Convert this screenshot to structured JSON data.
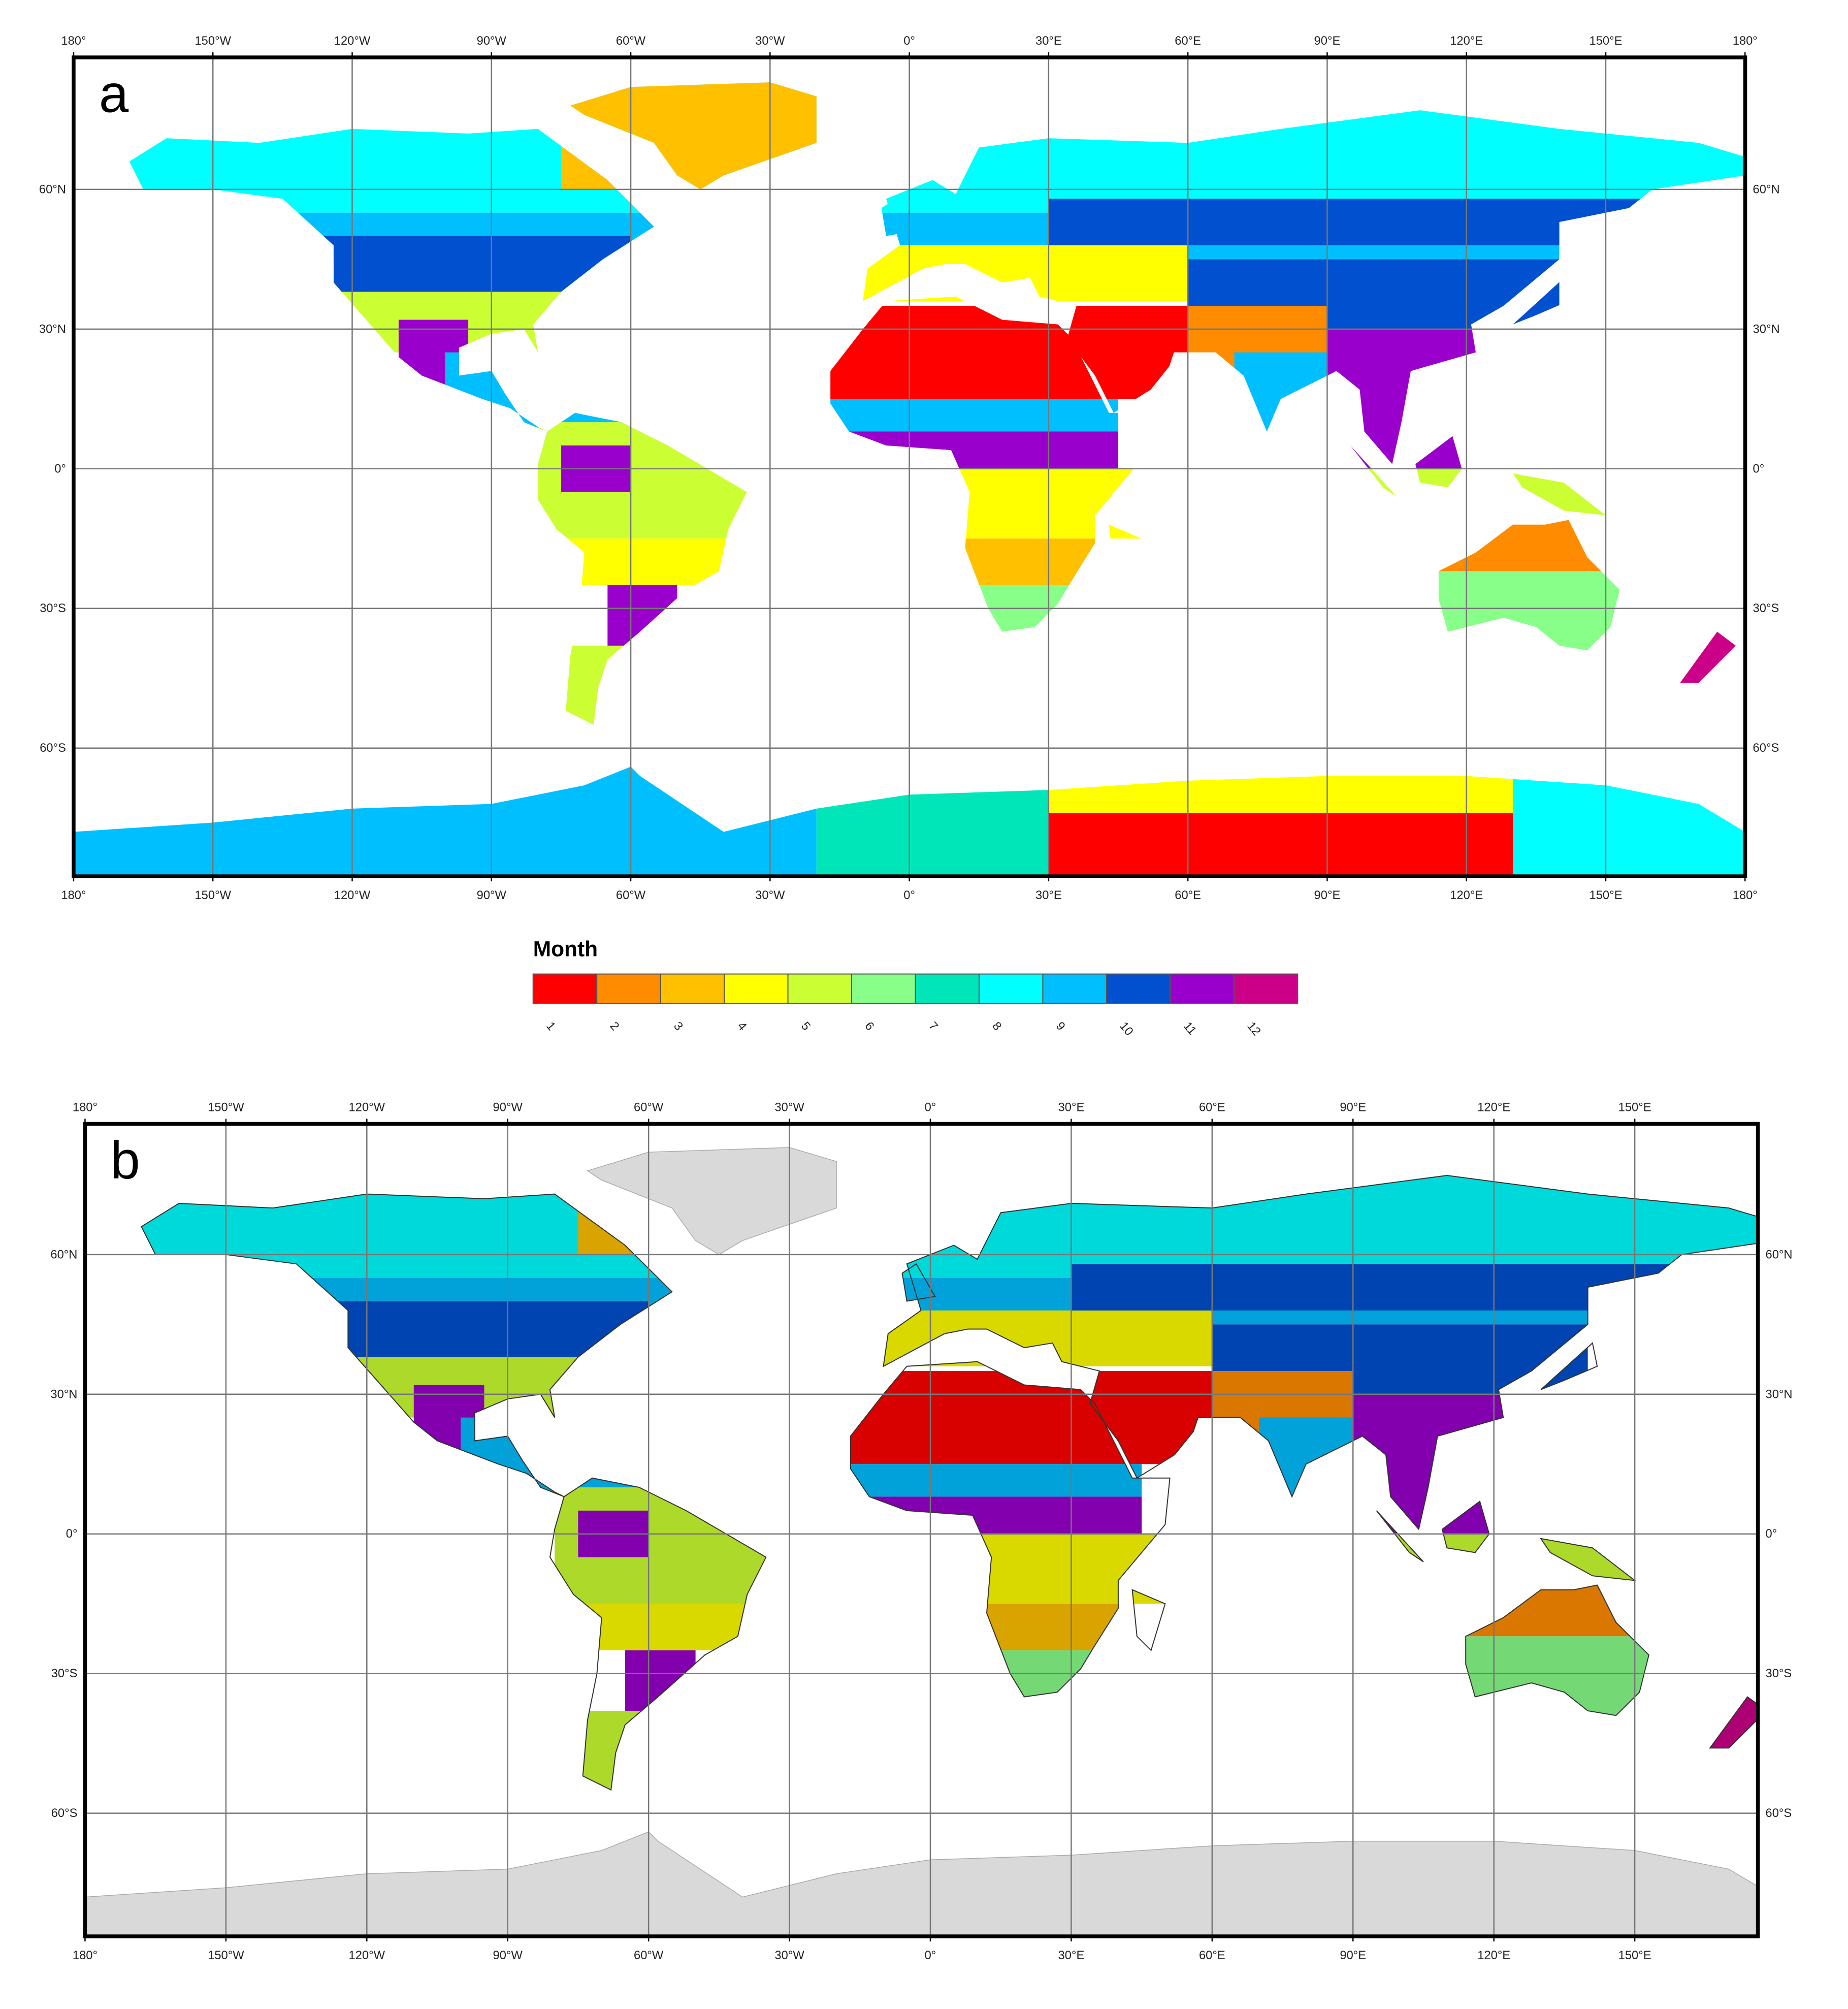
{
  "panels": [
    {
      "label": "a",
      "top_labels": [
        "180°",
        "150°W",
        "120°W",
        "90°W",
        "60°W",
        "30°W",
        "0°",
        "30°E",
        "60°E",
        "90°E",
        "120°E",
        "150°E",
        "180°"
      ],
      "bottom_labels": [
        "180°",
        "150°W",
        "120°W",
        "90°W",
        "60°W",
        "30°W",
        "0°",
        "30°E",
        "60°E",
        "90°E",
        "120°E",
        "150°E",
        "180°"
      ],
      "left_labels": [
        "60°N",
        "30°N",
        "0°",
        "30°S",
        "60°S"
      ],
      "right_labels": [
        "60°N",
        "30°N",
        "0°",
        "30°S",
        "60°S"
      ]
    },
    {
      "label": "b",
      "top_labels": [
        "180°",
        "150°W",
        "120°W",
        "90°W",
        "60°W",
        "30°W",
        "0°",
        "30°E",
        "60°E",
        "90°E",
        "120°E",
        "150°E"
      ],
      "bottom_labels": [
        "180°",
        "150°W",
        "120°W",
        "90°W",
        "60°W",
        "30°W",
        "0°",
        "30°E",
        "60°E",
        "90°E",
        "120°E",
        "150°E"
      ],
      "left_labels": [
        "60°N",
        "30°N",
        "0°",
        "30°S",
        "60°S"
      ],
      "right_labels": [
        "60°N",
        "30°N",
        "0°",
        "30°S",
        "60°S"
      ]
    }
  ],
  "legend": {
    "title": "Month",
    "items": [
      {
        "label": "1",
        "color": "#ff0000"
      },
      {
        "label": "2",
        "color": "#ff8c00"
      },
      {
        "label": "3",
        "color": "#ffc000"
      },
      {
        "label": "4",
        "color": "#ffff00"
      },
      {
        "label": "5",
        "color": "#ccff33"
      },
      {
        "label": "6",
        "color": "#88ff88"
      },
      {
        "label": "7",
        "color": "#00e6b8"
      },
      {
        "label": "8",
        "color": "#00ffff"
      },
      {
        "label": "9",
        "color": "#00bfff"
      },
      {
        "label": "10",
        "color": "#0050d0"
      },
      {
        "label": "11",
        "color": "#9900cc"
      },
      {
        "label": "12",
        "color": "#cc0088"
      }
    ]
  }
}
